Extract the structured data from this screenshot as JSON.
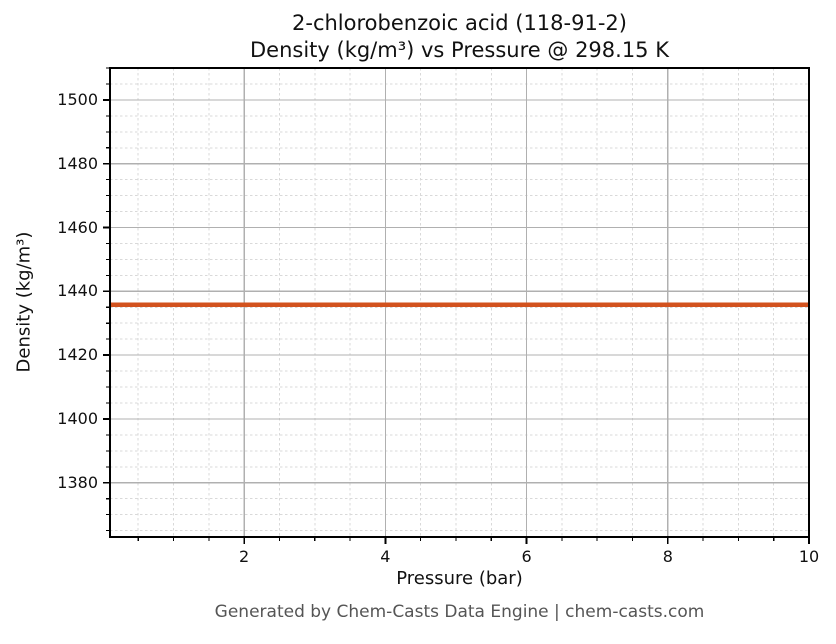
{
  "figure": {
    "title_line1": "2-chlorobenzoic acid (118-91-2)",
    "title_line2": "Density (kg/m³) vs Pressure @ 298.15 K",
    "footer": "Generated by Chem-Casts Data Engine | chem-casts.com"
  },
  "chart_data": {
    "type": "line",
    "title": "2-chlorobenzoic acid (118-91-2)\nDensity (kg/m³) vs Pressure @ 298.15 K",
    "xlabel": "Pressure (bar)",
    "ylabel": "Density (kg/m³)",
    "xlim": [
      0.1,
      10
    ],
    "ylim": [
      1363,
      1510
    ],
    "xticks": [
      2,
      4,
      6,
      8,
      10
    ],
    "yticks": [
      1380,
      1400,
      1420,
      1440,
      1460,
      1480,
      1500
    ],
    "x_minor_step": 0.5,
    "y_minor_step": 5,
    "grid": {
      "major": true,
      "minor": true,
      "major_color": "#b0b0b0",
      "minor_color": "#d9d9d9",
      "minor_style": "dashed"
    },
    "axis_color": "#000000",
    "series": [
      {
        "name": "density-vs-pressure",
        "color": "#d2521e",
        "linewidth": 4.5,
        "x": [
          0.1,
          10
        ],
        "y": [
          1435.8,
          1435.8
        ]
      }
    ],
    "legend": false
  }
}
